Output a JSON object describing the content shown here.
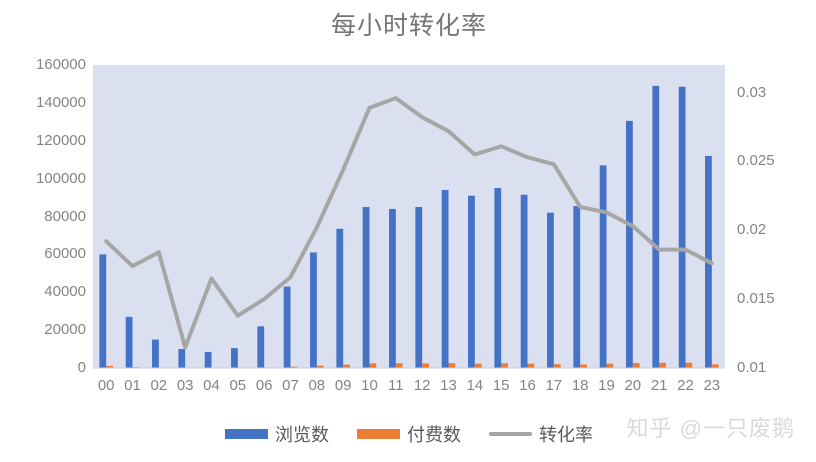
{
  "title": "每小时转化率",
  "watermark": "知乎 @一只废鹅",
  "legend": {
    "items": [
      {
        "label": "浏览数",
        "swatch": "bar",
        "color": "#4472C4"
      },
      {
        "label": "付费数",
        "swatch": "bar",
        "color": "#ED7D31"
      },
      {
        "label": "转化率",
        "swatch": "line",
        "color": "#A6A6A6"
      }
    ]
  },
  "colors": {
    "views_bar": "#4472C4",
    "payments_bar": "#ED7D31",
    "rate_line": "#A6A6A6",
    "plot_background": "#DBE0F0",
    "axis_text": "#848484",
    "title_text": "#767676",
    "watermark_text": "#DADADA"
  },
  "chart_data": {
    "type": "combo",
    "title": "每小时转化率",
    "categories": [
      "00",
      "01",
      "02",
      "03",
      "04",
      "05",
      "06",
      "07",
      "08",
      "09",
      "10",
      "11",
      "12",
      "13",
      "14",
      "15",
      "16",
      "17",
      "18",
      "19",
      "20",
      "21",
      "22",
      "23"
    ],
    "series": [
      {
        "name": "浏览数",
        "type": "bar",
        "axis": "left",
        "color": "#4472C4",
        "values": [
          60000,
          27000,
          15000,
          10000,
          8500,
          10500,
          22000,
          43000,
          61000,
          73500,
          85000,
          84000,
          85000,
          94000,
          91000,
          95000,
          91500,
          82000,
          85500,
          107000,
          130500,
          149000,
          148500,
          112000
        ]
      },
      {
        "name": "付费数",
        "type": "bar",
        "axis": "left",
        "color": "#ED7D31",
        "values": [
          1150,
          470,
          275,
          115,
          140,
          145,
          330,
          715,
          1230,
          1795,
          2455,
          2485,
          2395,
          2555,
          2320,
          2480,
          2315,
          2035,
          1855,
          2280,
          2650,
          2770,
          2760,
          1970
        ]
      },
      {
        "name": "转化率",
        "type": "line",
        "axis": "right",
        "color": "#A6A6A6",
        "values": [
          0.0192,
          0.0174,
          0.0184,
          0.0115,
          0.0165,
          0.0138,
          0.015,
          0.0166,
          0.0202,
          0.0244,
          0.0289,
          0.0296,
          0.0282,
          0.0272,
          0.0255,
          0.0261,
          0.0253,
          0.0248,
          0.0217,
          0.0213,
          0.0203,
          0.0186,
          0.0186,
          0.0176
        ]
      }
    ],
    "axes": {
      "left": {
        "min": 0,
        "max": 160000,
        "ticks": [
          0,
          20000,
          40000,
          60000,
          80000,
          100000,
          120000,
          140000,
          160000
        ]
      },
      "right": {
        "min": 0.01,
        "max": 0.032,
        "ticks": [
          0.01,
          0.015,
          0.02,
          0.025,
          0.03
        ]
      },
      "x": {
        "labels": [
          "00",
          "01",
          "02",
          "03",
          "04",
          "05",
          "06",
          "07",
          "08",
          "09",
          "10",
          "11",
          "12",
          "13",
          "14",
          "15",
          "16",
          "17",
          "18",
          "19",
          "20",
          "21",
          "22",
          "23"
        ]
      }
    },
    "grid": false,
    "legend_position": "bottom"
  }
}
